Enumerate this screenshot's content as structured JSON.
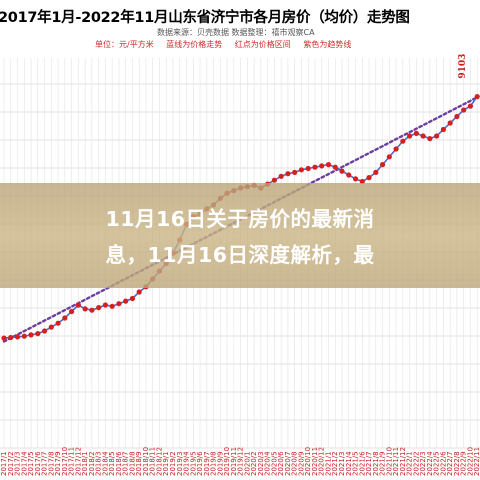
{
  "chart_data": {
    "type": "line",
    "title": "2017年1月-2022年11月山东省济宁市各月房价（均价）走势图",
    "subtitle": "数据来源：贝壳数据   数据整理：禧市观察CA",
    "legend": [
      "单位：元/平方米",
      "蓝线为价格走势",
      "红点为价格区间",
      "紫色为趋势线"
    ],
    "peak_label": "9103",
    "x": [
      "2017/1",
      "2017/2",
      "2017/3",
      "2017/4",
      "2017/5",
      "2017/6",
      "2017/7",
      "2017/8",
      "2017/9",
      "2017/10",
      "2017/11",
      "2017/12",
      "2018/1",
      "2018/2",
      "2018/3",
      "2018/4",
      "2018/5",
      "2018/6",
      "2018/7",
      "2018/8",
      "2018/9",
      "2018/10",
      "2018/11",
      "2018/12",
      "2019/1",
      "2019/2",
      "2019/3",
      "2019/4",
      "2019/5",
      "2019/6",
      "2019/7",
      "2019/8",
      "2019/9",
      "2019/10",
      "2019/11",
      "2019/12",
      "2020/1",
      "2020/2",
      "2020/3",
      "2020/4",
      "2020/5",
      "2020/6",
      "2020/7",
      "2020/8",
      "2020/9",
      "2020/10",
      "2020/11",
      "2020/12",
      "2021/1",
      "2021/2",
      "2021/3",
      "2021/4",
      "2021/5",
      "2021/6",
      "2021/7",
      "2021/8",
      "2021/9",
      "2021/10",
      "2021/11",
      "2021/12",
      "2022/1",
      "2022/2",
      "2022/3",
      "2022/4",
      "2022/5",
      "2022/6",
      "2022/7",
      "2022/8",
      "2022/9",
      "2022/10",
      "2022/11"
    ],
    "series": [
      {
        "values": [
          7245,
          7250,
          7255,
          7260,
          7270,
          7280,
          7300,
          7330,
          7360,
          7400,
          7450,
          7500,
          7470,
          7460,
          7480,
          7500,
          7490,
          7510,
          7530,
          7550,
          7600,
          7640,
          7700,
          7760,
          7820,
          7900,
          8000,
          8120,
          8180,
          8200,
          8240,
          8270,
          8320,
          8360,
          8380,
          8400,
          8410,
          8420,
          8400,
          8430,
          8460,
          8490,
          8510,
          8520,
          8540,
          8550,
          8560,
          8570,
          8580,
          8560,
          8530,
          8500,
          8470,
          8450,
          8480,
          8520,
          8580,
          8640,
          8700,
          8760,
          8800,
          8820,
          8800,
          8780,
          8800,
          8850,
          8900,
          8950,
          9000,
          9030,
          9103
        ]
      }
    ]
  },
  "banner": {
    "line1": "11月16日关于房价的最新消",
    "line2": "息，11月16日深度解析，最"
  }
}
